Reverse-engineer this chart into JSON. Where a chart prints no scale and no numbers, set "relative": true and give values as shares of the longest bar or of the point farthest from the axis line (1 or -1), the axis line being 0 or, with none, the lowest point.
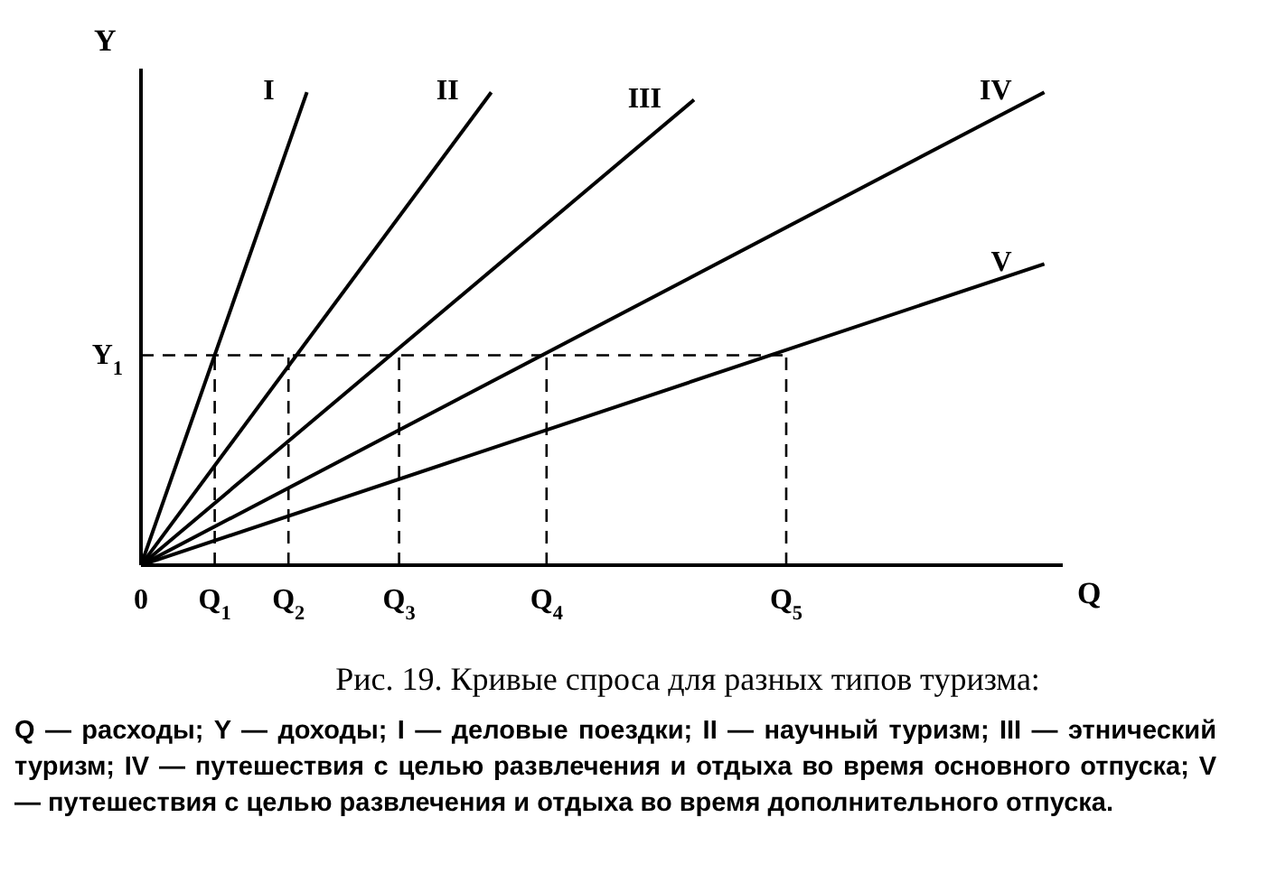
{
  "chart_data": {
    "type": "line",
    "title": "Рис. 19. Кривые спроса для разных типов туризма:",
    "xlabel": "Q",
    "ylabel": "Y",
    "annotations": [
      "Q — расходы; Y — доходы; I — деловые поездки; II — научный туризм; III — этнический туризм; IV — путешествия с целью развлечения и отдыха во время основного отпуска; V — путешествия с целью развлечения и отдыха во время дополнительного отпуска."
    ],
    "relative": true,
    "categories": [
      "0",
      null,
      null,
      null,
      "Q$_{1}$",
      null,
      null,
      null,
      "Q$_{2}$",
      null,
      null,
      null,
      null,
      null,
      "Q$_{3}$",
      null,
      null,
      null,
      null,
      null,
      null,
      null,
      "Q$_{4}$",
      null,
      null,
      null,
      null,
      null,
      null,
      null,
      null,
      null,
      null,
      null,
      null,
      "Q$_{5}$",
      null,
      null,
      null,
      null,
      null,
      null,
      null,
      null,
      null,
      null,
      null,
      null,
      null,
      null
    ],
    "grid": false,
    "legend": false,
    "marker": "none",
    "series": [
      {
        "name": "I",
        "color": "#000000",
        "values": [
          0,
          null,
          null,
          null,
          null,
          null,
          null,
          null,
          null,
          1,
          null,
          null,
          null,
          null,
          null,
          null,
          null,
          null,
          null,
          null,
          null,
          null,
          null,
          null,
          null,
          null,
          null,
          null,
          null,
          null,
          null,
          null,
          null,
          null,
          null,
          null,
          null,
          null,
          null,
          null,
          null,
          null,
          null,
          null,
          null,
          null,
          null,
          null,
          null,
          null
        ]
      },
      {
        "name": "II",
        "color": "#000000",
        "values": [
          0,
          null,
          null,
          null,
          null,
          null,
          null,
          null,
          null,
          null,
          null,
          null,
          null,
          null,
          null,
          null,
          null,
          null,
          null,
          1,
          null,
          null,
          null,
          null,
          null,
          null,
          null,
          null,
          null,
          null,
          null,
          null,
          null,
          null,
          null,
          null,
          null,
          null,
          null,
          null,
          null,
          null,
          null,
          null,
          null,
          null,
          null,
          null,
          null,
          null
        ]
      },
      {
        "name": "III",
        "color": "#000000",
        "values": [
          0,
          null,
          null,
          null,
          null,
          null,
          null,
          null,
          null,
          null,
          null,
          null,
          null,
          null,
          null,
          null,
          null,
          null,
          null,
          null,
          null,
          null,
          null,
          null,
          null,
          null,
          null,
          null,
          null,
          null,
          0.984,
          null,
          null,
          null,
          null,
          null,
          null,
          null,
          null,
          null,
          null,
          null,
          null,
          null,
          null,
          null,
          null,
          null,
          null,
          null
        ]
      },
      {
        "name": "IV",
        "color": "#000000",
        "values": [
          0,
          null,
          null,
          null,
          null,
          null,
          null,
          null,
          null,
          null,
          null,
          null,
          null,
          null,
          null,
          null,
          null,
          null,
          null,
          null,
          null,
          null,
          null,
          null,
          null,
          null,
          null,
          null,
          null,
          null,
          null,
          null,
          null,
          null,
          null,
          null,
          null,
          null,
          null,
          null,
          null,
          null,
          null,
          null,
          null,
          null,
          null,
          null,
          null,
          1
        ]
      },
      {
        "name": "V",
        "color": "#000000",
        "values": [
          0,
          null,
          null,
          null,
          null,
          null,
          null,
          null,
          null,
          null,
          null,
          null,
          null,
          null,
          null,
          null,
          null,
          null,
          null,
          null,
          null,
          null,
          null,
          null,
          null,
          null,
          null,
          null,
          null,
          null,
          null,
          null,
          null,
          null,
          null,
          null,
          null,
          null,
          null,
          null,
          null,
          null,
          null,
          null,
          null,
          null,
          null,
          null,
          null,
          0.637
        ]
      },
      {
        "name": "Y$_{1}$",
        "color": "#000000",
        "line_style": "dashed",
        "x": [
          "0",
          "Q$_{5}$"
        ],
        "values": [
          0.444,
          0.444
        ]
      },
      {
        "color": "#000000",
        "line_style": "dashed",
        "x": [
          "Q$_{1}$",
          "Q$_{1}$"
        ],
        "values": [
          0,
          0.444
        ]
      },
      {
        "color": "#000000",
        "line_style": "dashed",
        "x": [
          "Q$_{2}$",
          "Q$_{2}$"
        ],
        "values": [
          0,
          0.444
        ]
      },
      {
        "color": "#000000",
        "line_style": "dashed",
        "x": [
          "Q$_{3}$",
          "Q$_{3}$"
        ],
        "values": [
          0,
          0.444
        ]
      },
      {
        "color": "#000000",
        "line_style": "dashed",
        "x": [
          "Q$_{4}$",
          "Q$_{4}$"
        ],
        "values": [
          0,
          0.444
        ]
      },
      {
        "color": "#000000",
        "line_style": "dashed",
        "x": [
          "Q$_{5}$",
          "Q$_{5}$"
        ],
        "values": [
          0,
          0.444
        ]
      }
    ]
  }
}
